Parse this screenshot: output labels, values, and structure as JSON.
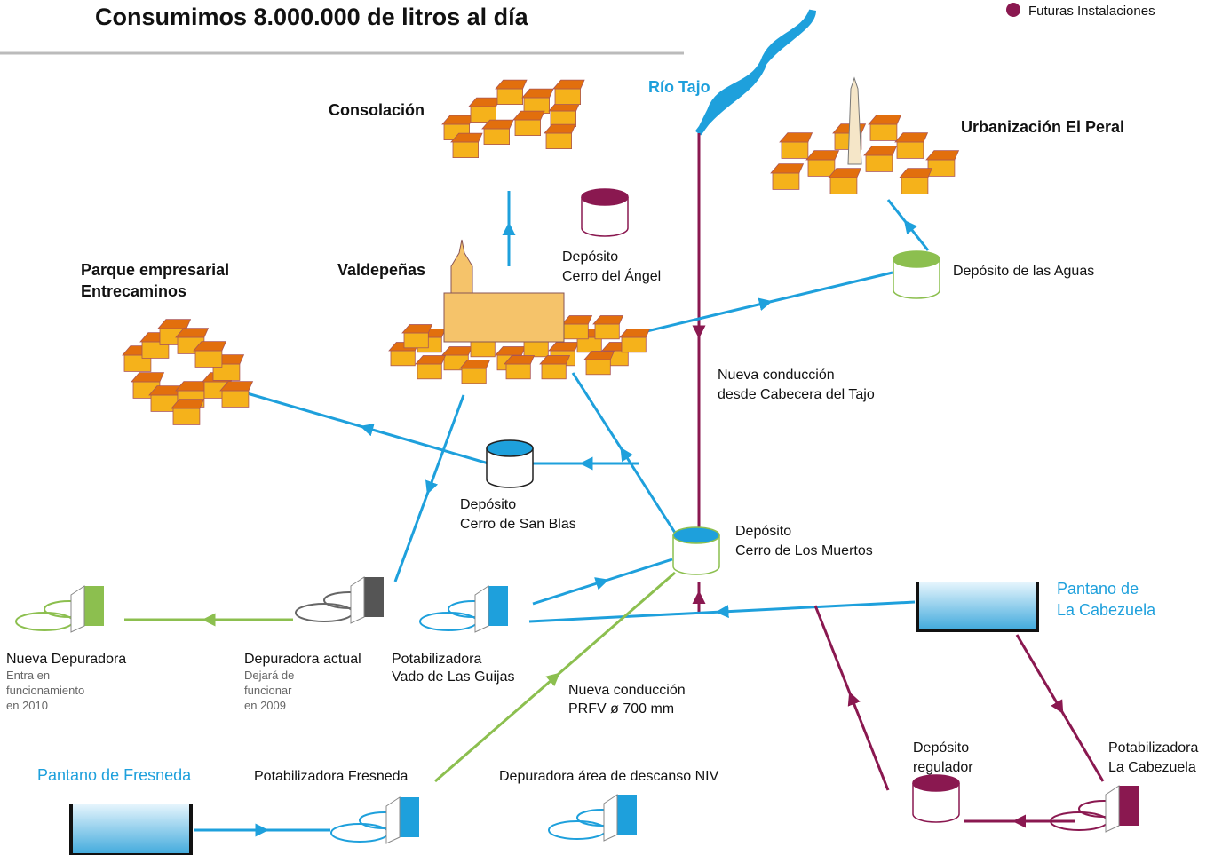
{
  "header": {
    "title": "Consumimos  8.000.000 de litros al día"
  },
  "legend": {
    "label": "Futuras Instalaciones"
  },
  "nodes": {
    "rio_tajo": {
      "lines": [
        "Río Tajo"
      ]
    },
    "consolacion": {
      "lines": [
        "Consolación"
      ]
    },
    "el_peral": {
      "lines": [
        "Urbanización El Peral"
      ]
    },
    "parque": {
      "lines": [
        "Parque empresarial",
        "Entrecaminos"
      ]
    },
    "valdepenas": {
      "lines": [
        "Valdepeñas"
      ]
    },
    "cerro_angel": {
      "lines": [
        "Depósito",
        "Cerro del Ángel"
      ]
    },
    "aguas": {
      "lines": [
        "Depósito de las Aguas"
      ]
    },
    "conduccion_tajo": {
      "lines": [
        "Nueva conducción",
        "desde Cabecera del Tajo"
      ]
    },
    "san_blas": {
      "lines": [
        "Depósito",
        "Cerro de San Blas"
      ]
    },
    "muertos": {
      "lines": [
        "Depósito",
        "Cerro de Los Muertos"
      ]
    },
    "cabezuela": {
      "lines": [
        "Pantano de",
        "La Cabezuela"
      ]
    },
    "nueva_depuradora": {
      "lines": [
        "Nueva Depuradora"
      ],
      "sub": [
        "Entra en",
        "funcionamiento",
        "en 2010"
      ]
    },
    "depuradora_actual": {
      "lines": [
        "Depuradora actual"
      ],
      "sub": [
        "Dejará de",
        "funcionar",
        "en 2009"
      ]
    },
    "vado": {
      "lines": [
        "Potabilizadora",
        "Vado de Las Guijas"
      ]
    },
    "conduccion_prfv": {
      "lines": [
        "Nueva conducción",
        "PRFV ø 700 mm"
      ]
    },
    "regulador": {
      "lines": [
        "Depósito",
        "regulador"
      ]
    },
    "potab_cabezuela": {
      "lines": [
        "Potabilizadora",
        "La Cabezuela"
      ]
    },
    "fresneda": {
      "lines": [
        "Pantano de Fresneda"
      ]
    },
    "potab_fresneda": {
      "lines": [
        "Potabilizadora Fresneda"
      ]
    },
    "depuradora_niv": {
      "lines": [
        "Depuradora área de descanso NIV"
      ]
    }
  }
}
